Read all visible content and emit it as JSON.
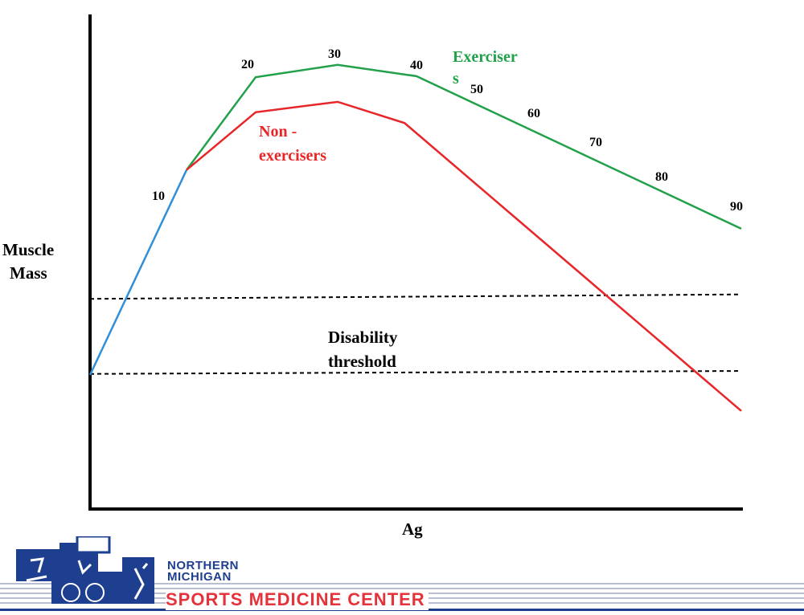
{
  "chart_data": {
    "type": "line",
    "title": "",
    "xlabel": "Ag",
    "ylabel": "Muscle Mass",
    "grid": false,
    "age_labels": [
      "10",
      "20",
      "30",
      "40",
      "50",
      "60",
      "70",
      "80",
      "90"
    ],
    "series": [
      {
        "name": "",
        "color": "#2f8fd8",
        "x": [
          0,
          10
        ],
        "y": [
          27,
          68.5
        ]
      },
      {
        "name": "Exercisers",
        "label_lines": [
          "Exerciser",
          "s"
        ],
        "color": "#22a14a",
        "x": [
          10,
          20,
          30,
          40,
          90
        ],
        "y": [
          68.5,
          87.3,
          89.8,
          87.5,
          56.6
        ]
      },
      {
        "name": "Non-exercisers",
        "label_lines": [
          "Non -",
          "exercisers"
        ],
        "color": "#e8262a",
        "x": [
          10,
          20,
          30,
          38.5,
          90
        ],
        "y": [
          68.5,
          80.2,
          82.3,
          78,
          19.7
        ]
      }
    ],
    "threshold": {
      "label_lines": [
        "Disability",
        "threshold"
      ],
      "upper": [
        42.4,
        43.3
      ],
      "lower": [
        27.2,
        27.8
      ]
    },
    "ylim": [
      0,
      100
    ],
    "xlim": [
      0,
      90
    ]
  },
  "footer": {
    "logo_line1": "NORTHERN",
    "logo_line2": "MICHIGAN",
    "logo_line3": "SPORTS MEDICINE CENTER",
    "brand_blue": "#1e3f8f",
    "brand_red": "#e6323a"
  }
}
